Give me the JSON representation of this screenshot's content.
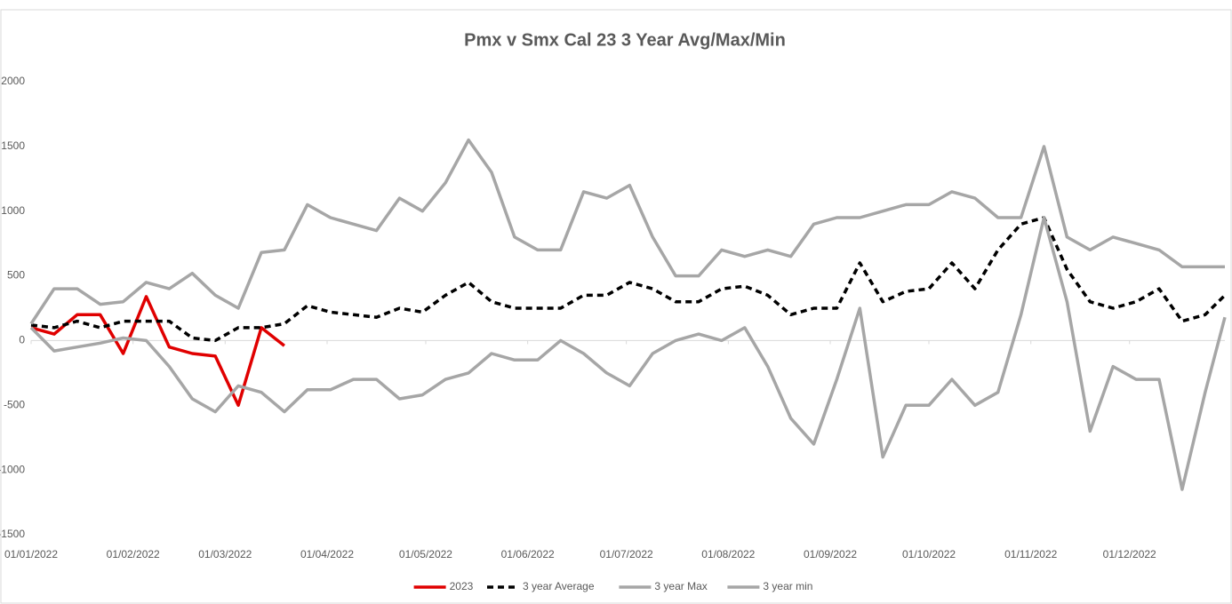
{
  "chart_data": {
    "type": "line",
    "title": "Pmx v Smx Cal 23 3 Year Avg/Max/Min",
    "x": [
      "01/01/2022",
      "08/01/2022",
      "15/01/2022",
      "22/01/2022",
      "29/01/2022",
      "05/02/2022",
      "12/02/2022",
      "19/02/2022",
      "26/02/2022",
      "05/03/2022",
      "12/03/2022",
      "19/03/2022",
      "26/03/2022",
      "02/04/2022",
      "09/04/2022",
      "16/04/2022",
      "23/04/2022",
      "30/04/2022",
      "07/05/2022",
      "14/05/2022",
      "21/05/2022",
      "28/05/2022",
      "04/06/2022",
      "11/06/2022",
      "18/06/2022",
      "25/06/2022",
      "02/07/2022",
      "09/07/2022",
      "16/07/2022",
      "23/07/2022",
      "30/07/2022",
      "06/08/2022",
      "13/08/2022",
      "20/08/2022",
      "27/08/2022",
      "03/09/2022",
      "10/09/2022",
      "17/09/2022",
      "24/09/2022",
      "01/10/2022",
      "08/10/2022",
      "15/10/2022",
      "22/10/2022",
      "29/10/2022",
      "05/11/2022",
      "12/11/2022",
      "19/11/2022",
      "26/11/2022",
      "03/12/2022",
      "10/12/2022",
      "17/12/2022",
      "24/12/2022",
      "30/12/2022"
    ],
    "series": [
      {
        "name": "2023",
        "color": "#e00000",
        "dash": false,
        "values": [
          100,
          50,
          200,
          200,
          -100,
          340,
          -50,
          -100,
          -120,
          -500,
          100,
          -40,
          null,
          null,
          null,
          null,
          null,
          null,
          null,
          null,
          null,
          null,
          null,
          null,
          null,
          null,
          null,
          null,
          null,
          null,
          null,
          null,
          null,
          null,
          null,
          null,
          null,
          null,
          null,
          null,
          null,
          null,
          null,
          null,
          null,
          null,
          null,
          null,
          null,
          null,
          null,
          null,
          null
        ]
      },
      {
        "name": "3 year Average",
        "color": "#000000",
        "dash": true,
        "values": [
          120,
          100,
          150,
          100,
          150,
          150,
          150,
          20,
          0,
          100,
          100,
          130,
          270,
          220,
          200,
          180,
          250,
          220,
          350,
          450,
          300,
          250,
          250,
          250,
          350,
          350,
          450,
          400,
          300,
          300,
          400,
          420,
          350,
          200,
          250,
          250,
          600,
          300,
          380,
          400,
          600,
          400,
          700,
          900,
          950,
          550,
          300,
          250,
          300,
          400,
          150,
          200,
          350
        ]
      },
      {
        "name": "3 year Max",
        "color": "#a6a6a6",
        "dash": false,
        "values": [
          130,
          400,
          400,
          280,
          300,
          450,
          400,
          520,
          350,
          250,
          680,
          700,
          1050,
          950,
          900,
          850,
          1100,
          1000,
          1220,
          1550,
          1300,
          800,
          700,
          700,
          1150,
          1100,
          1200,
          800,
          500,
          500,
          700,
          650,
          700,
          650,
          900,
          950,
          950,
          1000,
          1050,
          1050,
          1150,
          1100,
          950,
          950,
          1500,
          800,
          700,
          800,
          750,
          700,
          570,
          570,
          570
        ]
      },
      {
        "name": "3 year min",
        "color": "#a6a6a6",
        "dash": false,
        "values": [
          100,
          -80,
          -50,
          -20,
          20,
          0,
          -200,
          -450,
          -550,
          -350,
          -400,
          -550,
          -380,
          -380,
          -300,
          -300,
          -450,
          -420,
          -300,
          -250,
          -100,
          -150,
          -150,
          0,
          -100,
          -250,
          -350,
          -100,
          0,
          50,
          0,
          100,
          -200,
          -600,
          -800,
          -300,
          250,
          -900,
          -500,
          -500,
          -300,
          -500,
          -400,
          200,
          950,
          300,
          -700,
          -200,
          -300,
          -300,
          -1150,
          -400,
          180
        ]
      }
    ],
    "xlim": [
      "01/01/2022",
      "30/12/2022"
    ],
    "xticks": [
      "01/01/2022",
      "01/02/2022",
      "01/03/2022",
      "01/04/2022",
      "01/05/2022",
      "01/06/2022",
      "01/07/2022",
      "01/08/2022",
      "01/09/2022",
      "01/10/2022",
      "01/11/2022",
      "01/12/2022"
    ],
    "ylim": [
      -1500,
      2000
    ],
    "yticks": [
      -1500,
      -1000,
      -500,
      0,
      500,
      1000,
      1500,
      2000
    ],
    "grid": false,
    "legend": "bottom"
  }
}
